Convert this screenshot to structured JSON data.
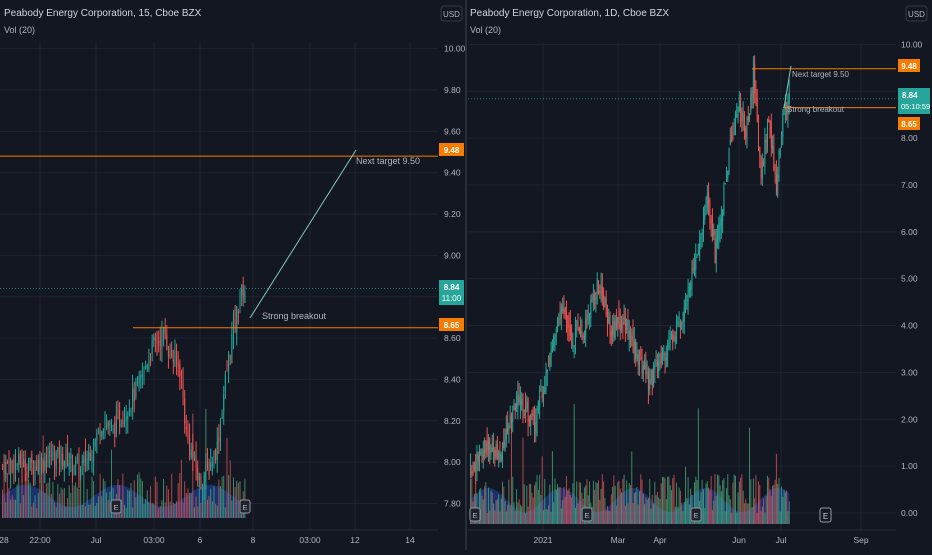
{
  "colors": {
    "bg": "#131722",
    "grid": "#1f2230",
    "divider": "#2a2e39",
    "up": "#26a69a",
    "down": "#ef5350",
    "vol_up": "#4caf7d",
    "vol_down": "#e0595a",
    "vol_ma_fill": "#2962ff",
    "level": "#f57c00",
    "annotation": "#7ec8b5",
    "text": "#b2b5be",
    "price_tag": "#26a69a",
    "earnings_icon": "E-icon"
  },
  "panels": [
    {
      "id": "left",
      "title": "Peabody Energy Corporation, 15, Cboe BZX",
      "indicator": "Vol (20)",
      "currency": "USD",
      "yticks": [
        "10.00",
        "9.80",
        "9.60",
        "9.40",
        "9.20",
        "9.00",
        "8.80",
        "8.60",
        "8.40",
        "8.20",
        "8.00",
        "7.80"
      ],
      "xticks": [
        "28",
        "22:00",
        "Jul",
        "03:00",
        "6",
        "8",
        "03:00",
        "12",
        "14"
      ],
      "level_tags": [
        "9.48",
        "8.65"
      ],
      "last_price": "8.84",
      "countdown": "11:00",
      "annotations": [
        "Next target 9.50",
        "Strong breakout"
      ]
    },
    {
      "id": "right",
      "title": "Peabody Energy Corporation, 1D, Cboe BZX",
      "indicator": "Vol (20)",
      "currency": "USD",
      "yticks": [
        "10.00",
        "9.00",
        "8.00",
        "7.00",
        "6.00",
        "5.00",
        "4.00",
        "3.00",
        "2.00",
        "1.00",
        "0.00"
      ],
      "xticks": [
        "2021",
        "Mar",
        "Apr",
        "Jun",
        "Jul",
        "Sep"
      ],
      "level_tags": [
        "9.48",
        "8.65"
      ],
      "last_price": "8.84",
      "countdown": "05:10:59",
      "annotations": [
        "Next target 9.50",
        "Strong breakout"
      ]
    }
  ],
  "chart_data": [
    {
      "type": "candlestick",
      "title": "Peabody Energy Corporation, 15, Cboe BZX",
      "ylim": [
        7.72,
        10.1
      ],
      "horizontal_levels": [
        9.48,
        8.65
      ],
      "last_price": 8.84,
      "close_path": [
        {
          "t": 0,
          "v": 7.98
        },
        {
          "t": 8,
          "v": 8.0
        },
        {
          "t": 18,
          "v": 7.98
        },
        {
          "t": 30,
          "v": 8.03
        },
        {
          "t": 40,
          "v": 8.02
        },
        {
          "t": 48,
          "v": 7.96
        },
        {
          "t": 56,
          "v": 8.08
        },
        {
          "t": 62,
          "v": 8.2
        },
        {
          "t": 68,
          "v": 8.15
        },
        {
          "t": 78,
          "v": 8.28
        },
        {
          "t": 85,
          "v": 8.38
        },
        {
          "t": 92,
          "v": 8.55
        },
        {
          "t": 100,
          "v": 8.62
        },
        {
          "t": 104,
          "v": 8.52
        },
        {
          "t": 110,
          "v": 8.45
        },
        {
          "t": 114,
          "v": 8.12
        },
        {
          "t": 118,
          "v": 8.02
        },
        {
          "t": 122,
          "v": 7.9
        },
        {
          "t": 128,
          "v": 7.98
        },
        {
          "t": 133,
          "v": 8.08
        },
        {
          "t": 138,
          "v": 8.4
        },
        {
          "t": 142,
          "v": 8.6
        },
        {
          "t": 147,
          "v": 8.8
        },
        {
          "t": 150,
          "v": 8.84
        }
      ],
      "annotations": [
        {
          "text": "Next target 9.50",
          "y": 9.5
        },
        {
          "text": "Strong breakout",
          "y": 8.65
        }
      ]
    },
    {
      "type": "candlestick",
      "title": "Peabody Energy Corporation, 1D, Cboe BZX",
      "ylim": [
        -0.15,
        10.35
      ],
      "horizontal_levels": [
        9.48,
        8.65
      ],
      "last_price": 8.84,
      "close_path": [
        {
          "t": 0,
          "v": 0.9
        },
        {
          "t": 12,
          "v": 1.4
        },
        {
          "t": 24,
          "v": 1.3
        },
        {
          "t": 38,
          "v": 2.4
        },
        {
          "t": 50,
          "v": 1.9
        },
        {
          "t": 62,
          "v": 3.3
        },
        {
          "t": 72,
          "v": 4.3
        },
        {
          "t": 80,
          "v": 3.7
        },
        {
          "t": 90,
          "v": 4.0
        },
        {
          "t": 100,
          "v": 5.0
        },
        {
          "t": 110,
          "v": 3.9
        },
        {
          "t": 120,
          "v": 4.1
        },
        {
          "t": 132,
          "v": 3.3
        },
        {
          "t": 140,
          "v": 2.8
        },
        {
          "t": 150,
          "v": 3.3
        },
        {
          "t": 162,
          "v": 3.9
        },
        {
          "t": 172,
          "v": 4.8
        },
        {
          "t": 180,
          "v": 5.6
        },
        {
          "t": 186,
          "v": 6.8
        },
        {
          "t": 192,
          "v": 5.6
        },
        {
          "t": 198,
          "v": 6.7
        },
        {
          "t": 204,
          "v": 7.9
        },
        {
          "t": 210,
          "v": 8.8
        },
        {
          "t": 216,
          "v": 8.1
        },
        {
          "t": 222,
          "v": 9.3
        },
        {
          "t": 228,
          "v": 7.2
        },
        {
          "t": 234,
          "v": 8.4
        },
        {
          "t": 240,
          "v": 7.0
        },
        {
          "t": 246,
          "v": 8.6
        },
        {
          "t": 250,
          "v": 8.84
        }
      ],
      "annotations": [
        {
          "text": "Next target 9.50",
          "y": 9.5
        },
        {
          "text": "Strong breakout",
          "y": 8.65
        }
      ]
    }
  ]
}
